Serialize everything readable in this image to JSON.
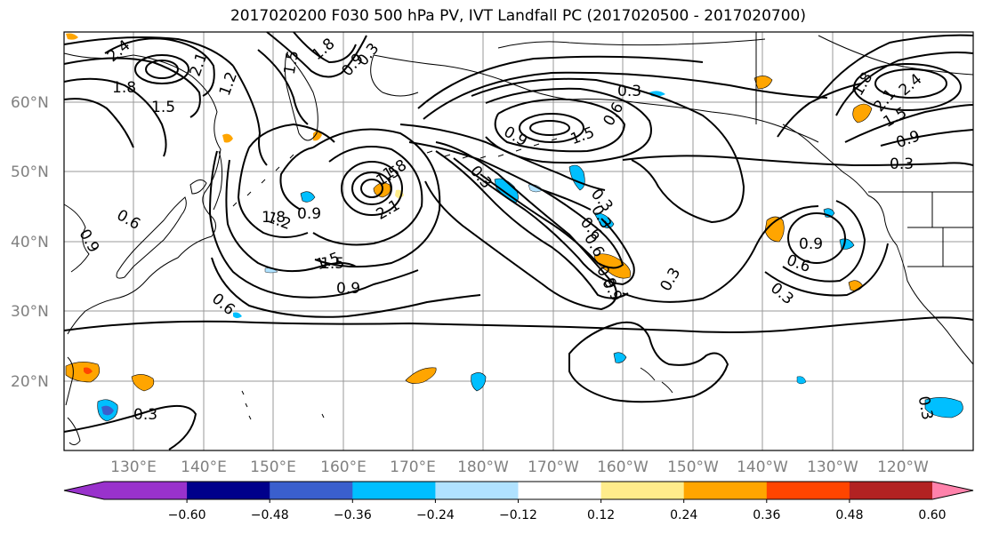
{
  "title": "2017020200 F030 500 hPa PV, IVT Landfall PC (2017020500 - 2017020700)",
  "map": {
    "lat_ticks": [
      "60°N",
      "50°N",
      "40°N",
      "30°N",
      "20°N"
    ],
    "lon_ticks": [
      "130°E",
      "140°E",
      "150°E",
      "160°E",
      "170°E",
      "180°W",
      "170°W",
      "160°W",
      "150°W",
      "140°W",
      "130°W",
      "120°W"
    ],
    "contour_labels": [
      "2.4",
      "1.8",
      "2.1",
      "1.5",
      "1.2",
      "1.5",
      "1.8",
      "0.9",
      "0.3",
      "0.6",
      "0.9",
      "1.5",
      "1.2",
      "0.9",
      "1.5",
      "1.8",
      "2.1",
      "1.8",
      "1.5",
      "0.9",
      "0.3",
      "0.6",
      "0.3",
      "0.6",
      "0.9",
      "1.8",
      "2.1",
      "2.4",
      "1.5",
      "0.9",
      "0.3",
      "0.9",
      "0.6",
      "0.3",
      "0.3",
      "0.3",
      "0.6",
      "0.3",
      "0.9",
      "0.6",
      "0.9",
      "1.5",
      "0.3",
      "0.3"
    ]
  },
  "colorbar": {
    "ticks": [
      "−0.60",
      "−0.48",
      "−0.36",
      "−0.24",
      "−0.12",
      "0.12",
      "0.24",
      "0.36",
      "0.48",
      "0.60"
    ],
    "colors": [
      "#9932CC",
      "#00008B",
      "#3A5FCD",
      "#00BFFF",
      "#B0E2FF",
      "#FFFFFF",
      "#FFEC8B",
      "#FFA500",
      "#FF4500",
      "#B22222",
      "#FF82AB"
    ]
  }
}
